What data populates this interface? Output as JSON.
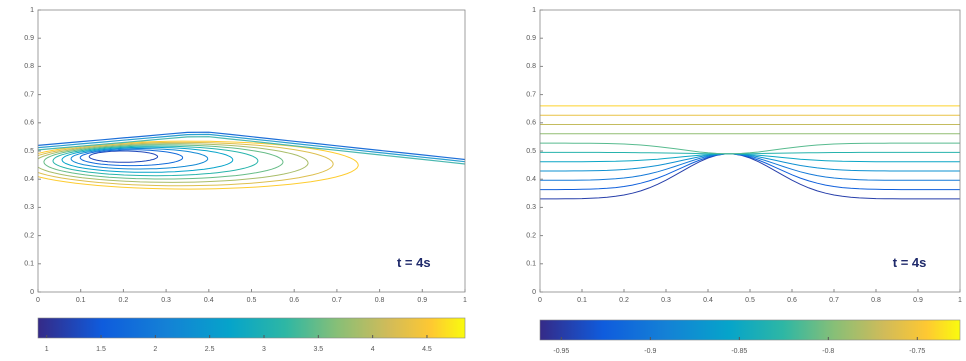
{
  "chart_data": [
    {
      "type": "contour",
      "xlim": [
        0,
        1
      ],
      "ylim": [
        0,
        1
      ],
      "xticks": [
        0,
        0.1,
        0.2,
        0.3,
        0.4,
        0.5,
        0.6,
        0.7,
        0.8,
        0.9,
        1
      ],
      "yticks": [
        0,
        0.1,
        0.2,
        0.3,
        0.4,
        0.5,
        0.6,
        0.7,
        0.8,
        0.9,
        1
      ],
      "annotation": "t = 4s",
      "levels": [
        1.2,
        1.6,
        2,
        2.4,
        2.8,
        3.2,
        3.6,
        4,
        4.4
      ],
      "colorbar": {
        "lim": [
          0.92,
          4.85
        ],
        "ticks": [
          1,
          1.5,
          2,
          2.5,
          3,
          3.5,
          4,
          4.5
        ]
      }
    },
    {
      "type": "contour",
      "xlim": [
        0,
        1
      ],
      "ylim": [
        0,
        1
      ],
      "xticks": [
        0,
        0.1,
        0.2,
        0.3,
        0.4,
        0.5,
        0.6,
        0.7,
        0.8,
        0.9,
        1
      ],
      "yticks": [
        0,
        0.1,
        0.2,
        0.3,
        0.4,
        0.5,
        0.6,
        0.7,
        0.8,
        0.9,
        1
      ],
      "annotation": "t = 4s",
      "levels": [
        -0.95,
        -0.93,
        -0.91,
        -0.89,
        -0.87,
        -0.85,
        -0.83,
        -0.81,
        -0.79,
        -0.77,
        -0.75
      ],
      "colorbar": {
        "lim": [
          -0.962,
          -0.726
        ],
        "ticks": [
          -0.95,
          -0.9,
          -0.85,
          -0.8,
          -0.75
        ]
      }
    }
  ]
}
